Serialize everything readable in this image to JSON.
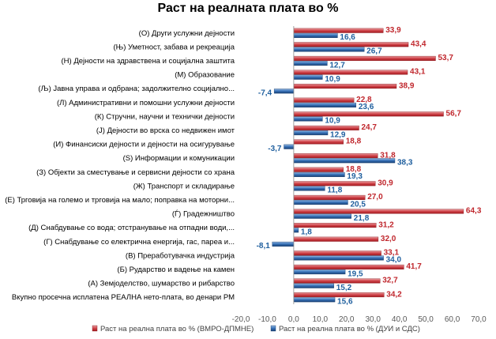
{
  "chart_data": {
    "type": "bar",
    "orientation": "horizontal",
    "title": "Раст на реалната плата во %",
    "categories": [
      "(О) Други услужни дејности",
      "(Њ) Уметност, забава и рекреација",
      "(Н) Дејности на здравствена  и социјална заштита",
      "(М) Образование",
      "(Љ) Јавна управа и одбрана; задолжително социјално...",
      "(Л) Административни и помошни услужни дејности",
      "(К) Стручни, научни и технички дејности",
      "(Ј) Дејности во врска со недвижен имот",
      "(И) Финансиски дејности и дејности на осигурување",
      "(Ѕ) Информации и комуникации",
      "(З) Објекти за сместување и сервисни дејности со храна",
      "(Ж) Транспорт и складирање",
      "(Е) Трговија на големо и трговија на мало; поправка на моторни...",
      "(Ѓ) Градежништво",
      "(Д) Снабдување со вода; отстранување на отпадни води,...",
      "(Г) Снабдување со електрична енергија, гас, пареа и...",
      "(В) Преработувачка индустрија",
      "(Б) Рударство и вадење на камен",
      "(А) Земјоделство, шумарство и рибарство",
      "Вкупно просечна исплатена РЕАЛНА нето-плата, во денари РМ"
    ],
    "series": [
      {
        "name": "Раст на реална плата во % (ВМРО-ДПМНЕ)",
        "color": "#c0272d",
        "values": [
          33.9,
          43.4,
          53.7,
          43.1,
          38.9,
          22.8,
          56.7,
          24.7,
          18.8,
          31.8,
          18.8,
          30.9,
          27.0,
          64.3,
          31.2,
          32.0,
          33.1,
          41.7,
          32.7,
          34.2
        ],
        "labels": [
          "33,9",
          "43,4",
          "53,7",
          "43,1",
          "38,9",
          "22,8",
          "56,7",
          "24,7",
          "18,8",
          "31,8",
          "18,8",
          "30,9",
          "27,0",
          "64,3",
          "31,2",
          "32,0",
          "33,1",
          "41,7",
          "32,7",
          "34,2"
        ]
      },
      {
        "name": "Раст на реална плата во % (ДУИ и СДС)",
        "color": "#1f5f9e",
        "values": [
          16.6,
          26.7,
          12.7,
          10.9,
          -7.4,
          23.6,
          10.9,
          12.9,
          -3.7,
          38.3,
          19.3,
          11.8,
          20.5,
          21.8,
          1.8,
          -8.1,
          34.0,
          19.5,
          15.2,
          15.6
        ],
        "labels": [
          "16,6",
          "26,7",
          "12,7",
          "10,9",
          "-7,4",
          "23,6",
          "10,9",
          "12,9",
          "-3,7",
          "38,3",
          "19,3",
          "11,8",
          "20,5",
          "21,8",
          "1,8",
          "-8,1",
          "34,0",
          "19,5",
          "15,2",
          "15,6"
        ]
      }
    ],
    "xlim": [
      -20,
      70
    ],
    "xticks": [
      -20,
      -10,
      0,
      10,
      20,
      30,
      40,
      50,
      60,
      70
    ],
    "xtick_labels": [
      "-20,0",
      "-10,0",
      "0,0",
      "10,0",
      "20,0",
      "30,0",
      "40,0",
      "50,0",
      "60,0",
      "70,0"
    ],
    "grid": false,
    "legend_position": "bottom"
  }
}
